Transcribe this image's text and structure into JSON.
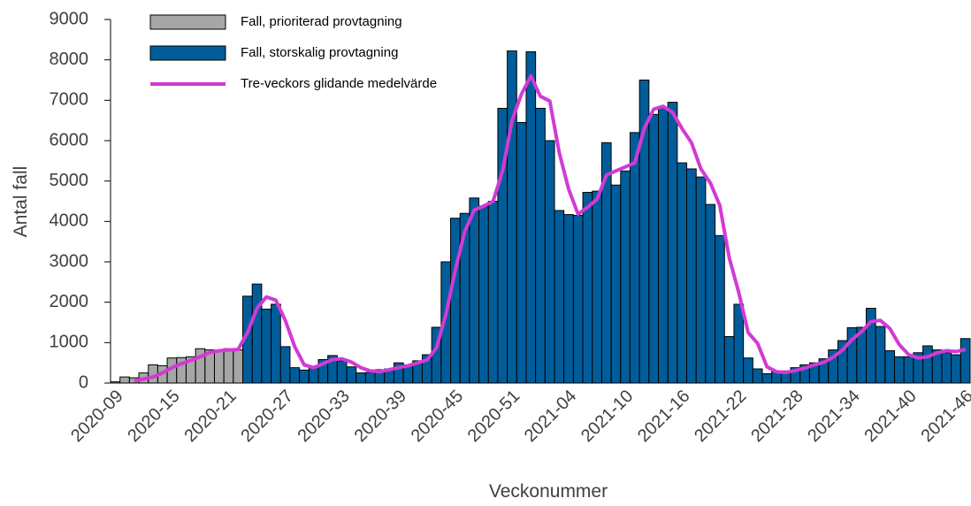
{
  "chart_data": {
    "type": "bar",
    "x_label": "Veckonummer",
    "y_label": "Antal fall",
    "categories": [
      "2020-09",
      null,
      null,
      null,
      null,
      null,
      "2020-15",
      null,
      null,
      null,
      null,
      null,
      "2020-21",
      null,
      null,
      null,
      null,
      null,
      "2020-27",
      null,
      null,
      null,
      null,
      null,
      "2020-33",
      null,
      null,
      null,
      null,
      null,
      "2020-39",
      null,
      null,
      null,
      null,
      null,
      "2020-45",
      null,
      null,
      null,
      null,
      null,
      "2020-51",
      null,
      null,
      null,
      null,
      null,
      "2021-04",
      null,
      null,
      null,
      null,
      null,
      "2021-10",
      null,
      null,
      null,
      null,
      null,
      "2021-16",
      null,
      null,
      null,
      null,
      null,
      "2021-22",
      null,
      null,
      null,
      null,
      null,
      "2021-28",
      null,
      null,
      null,
      null,
      null,
      "2021-34",
      null,
      null,
      null,
      null,
      null,
      "2021-40",
      null,
      null,
      null,
      null,
      null,
      "2021-46"
    ],
    "series": [
      {
        "name": "Fall, prioriterad provtagning",
        "type": "bar",
        "color": "#a6a6a6",
        "values": [
          30,
          150,
          130,
          250,
          450,
          430,
          620,
          630,
          650,
          850,
          820,
          800,
          850,
          820,
          null,
          null,
          null,
          null,
          null,
          null,
          null,
          null,
          null,
          null,
          null,
          null,
          null,
          null,
          null,
          null,
          null,
          null,
          null,
          null,
          null,
          null,
          null,
          null,
          null,
          null,
          null,
          null,
          null,
          null,
          null,
          null,
          null,
          null,
          null,
          null,
          null,
          null,
          null,
          null,
          null,
          null,
          null,
          null,
          null,
          null,
          null,
          null,
          null,
          null,
          null,
          null,
          null,
          null,
          null,
          null,
          null,
          null,
          null,
          null,
          null,
          null,
          null,
          null,
          null,
          null,
          null,
          null,
          null,
          null,
          null,
          null,
          null,
          null,
          null,
          null,
          null
        ]
      },
      {
        "name": "Fall, storskalig provtagning",
        "type": "bar",
        "color": "#005d9a",
        "values": [
          null,
          null,
          null,
          null,
          null,
          null,
          null,
          null,
          null,
          null,
          null,
          null,
          null,
          null,
          2150,
          2450,
          1830,
          1950,
          900,
          380,
          320,
          400,
          580,
          680,
          550,
          400,
          250,
          260,
          330,
          350,
          500,
          450,
          550,
          700,
          1380,
          3000,
          4080,
          4200,
          4580,
          4380,
          4500,
          6800,
          8220,
          6450,
          8200,
          6800,
          6000,
          4270,
          4170,
          4150,
          4720,
          4750,
          5950,
          4900,
          5250,
          6200,
          7500,
          6650,
          6820,
          6950,
          5450,
          5300,
          5100,
          4420,
          3650,
          1150,
          1950,
          620,
          350,
          230,
          280,
          300,
          380,
          450,
          500,
          600,
          820,
          1050,
          1370,
          1380,
          1850,
          1400,
          800,
          650,
          650,
          750,
          920,
          820,
          750,
          700,
          1100
        ]
      },
      {
        "name": "Tre-veckors glidande medelvärde",
        "type": "line",
        "color": "#d23ad6",
        "values": [
          null,
          null,
          50,
          100,
          150,
          250,
          380,
          480,
          560,
          650,
          760,
          800,
          820,
          830,
          1250,
          1850,
          2130,
          2050,
          1550,
          900,
          450,
          380,
          480,
          580,
          600,
          520,
          380,
          300,
          280,
          330,
          380,
          430,
          500,
          570,
          870,
          1700,
          2800,
          3750,
          4280,
          4380,
          4500,
          5250,
          6500,
          7150,
          7600,
          7100,
          6980,
          5700,
          4800,
          4180,
          4350,
          4550,
          5150,
          5250,
          5350,
          5450,
          6300,
          6780,
          6850,
          6700,
          6300,
          5950,
          5300,
          4950,
          4400,
          3100,
          2250,
          1250,
          980,
          400,
          280,
          260,
          310,
          370,
          450,
          510,
          640,
          820,
          1080,
          1270,
          1520,
          1550,
          1350,
          950,
          700,
          620,
          650,
          750,
          800,
          780,
          830
        ]
      }
    ],
    "ylim": [
      0,
      9000
    ],
    "yticks": [
      0,
      1000,
      2000,
      3000,
      4000,
      5000,
      6000,
      7000,
      8000,
      9000
    ],
    "legend": "upper left"
  }
}
